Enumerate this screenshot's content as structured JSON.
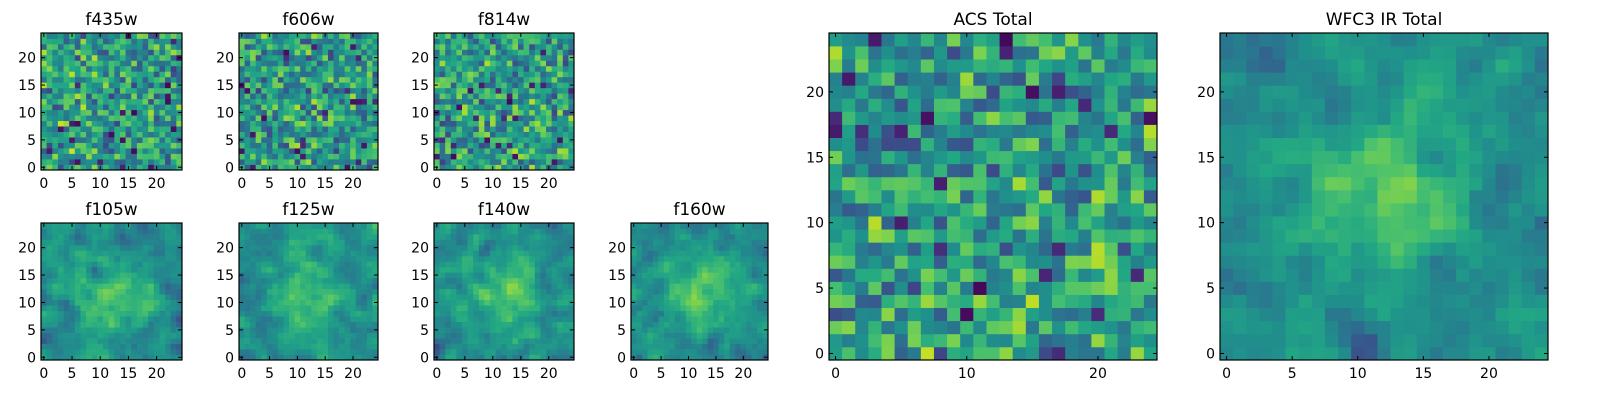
{
  "chart_data": [
    {
      "type": "heatmap",
      "title": "f435w",
      "grid_size": 25,
      "xticks": [
        "0",
        "5",
        "10",
        "15",
        "20"
      ],
      "yticks": [
        "0",
        "5",
        "10",
        "15",
        "20"
      ],
      "colormap": "viridis",
      "style": "noise",
      "seed": 11
    },
    {
      "type": "heatmap",
      "title": "f606w",
      "grid_size": 25,
      "xticks": [
        "0",
        "5",
        "10",
        "15",
        "20"
      ],
      "yticks": [
        "0",
        "5",
        "10",
        "15",
        "20"
      ],
      "colormap": "viridis",
      "style": "noise",
      "seed": 23
    },
    {
      "type": "heatmap",
      "title": "f814w",
      "grid_size": 25,
      "xticks": [
        "0",
        "5",
        "10",
        "15",
        "20"
      ],
      "yticks": [
        "0",
        "5",
        "10",
        "15",
        "20"
      ],
      "colormap": "viridis",
      "style": "noise",
      "seed": 37
    },
    {
      "type": "heatmap",
      "title": "f105w",
      "grid_size": 25,
      "xticks": [
        "0",
        "5",
        "10",
        "15",
        "20"
      ],
      "yticks": [
        "0",
        "5",
        "10",
        "15",
        "20"
      ],
      "colormap": "viridis",
      "style": "blob",
      "seed": 41
    },
    {
      "type": "heatmap",
      "title": "f125w",
      "grid_size": 25,
      "xticks": [
        "0",
        "5",
        "10",
        "15",
        "20"
      ],
      "yticks": [
        "0",
        "5",
        "10",
        "15",
        "20"
      ],
      "colormap": "viridis",
      "style": "blob",
      "seed": 53
    },
    {
      "type": "heatmap",
      "title": "f140w",
      "grid_size": 25,
      "xticks": [
        "0",
        "5",
        "10",
        "15",
        "20"
      ],
      "yticks": [
        "0",
        "5",
        "10",
        "15",
        "20"
      ],
      "colormap": "viridis",
      "style": "blob",
      "seed": 67
    },
    {
      "type": "heatmap",
      "title": "f160w",
      "grid_size": 25,
      "xticks": [
        "0",
        "5",
        "10",
        "15",
        "20"
      ],
      "yticks": [
        "0",
        "5",
        "10",
        "15",
        "20"
      ],
      "colormap": "viridis",
      "style": "blob",
      "seed": 79
    },
    {
      "type": "heatmap",
      "title": "ACS Total",
      "grid_size": 25,
      "xticks": [
        "0",
        "10",
        "20"
      ],
      "yticks": [
        "0",
        "5",
        "10",
        "15",
        "20"
      ],
      "colormap": "viridis",
      "style": "noise",
      "seed": 83
    },
    {
      "type": "heatmap",
      "title": "WFC3 IR Total",
      "grid_size": 25,
      "xticks": [
        "0",
        "5",
        "10",
        "15",
        "20"
      ],
      "yticks": [
        "0",
        "5",
        "10",
        "15",
        "20"
      ],
      "colormap": "viridis",
      "style": "blob",
      "seed": 97
    }
  ]
}
